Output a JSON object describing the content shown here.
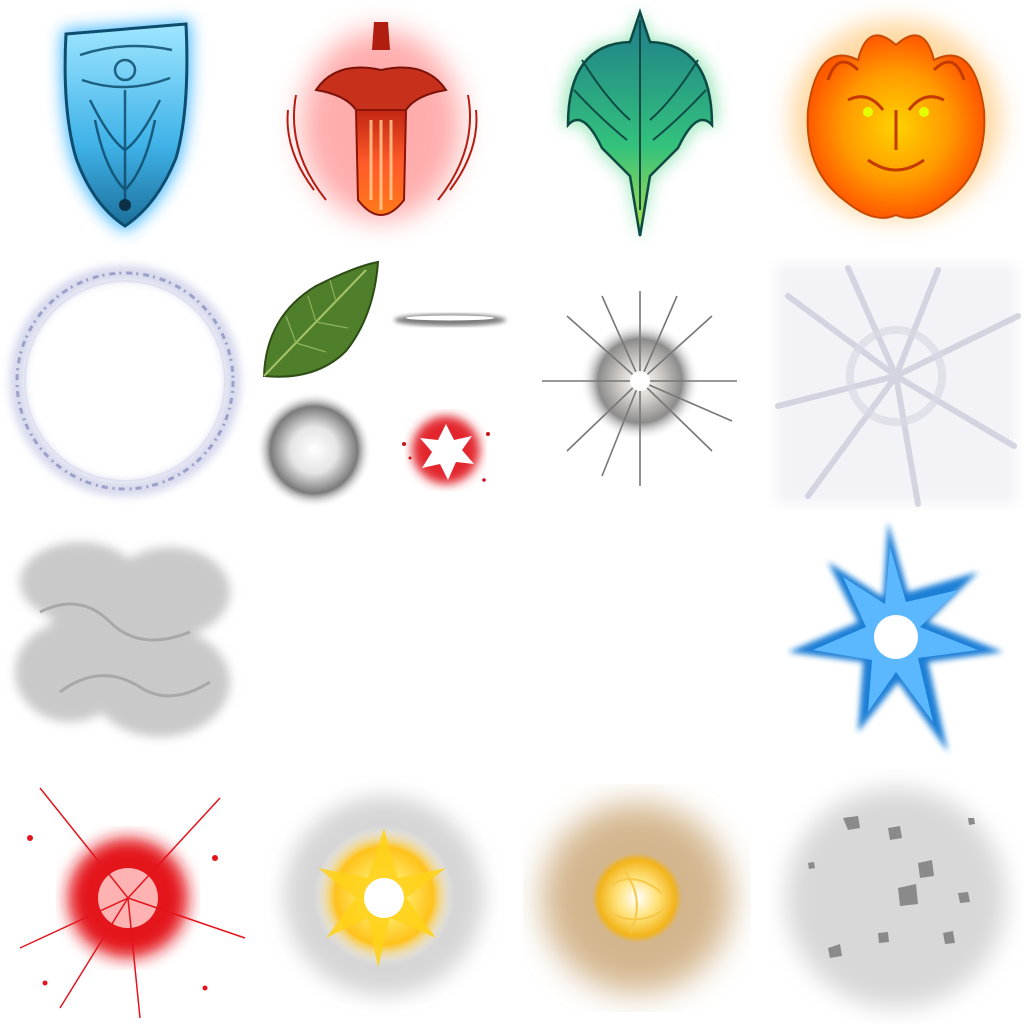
{
  "sprite_sheet": {
    "columns": 4,
    "rows": 4,
    "background": "#ffffff",
    "sprites": [
      {
        "name": "blue-shield-emblem",
        "color": "#27a8ff"
      },
      {
        "name": "red-sword-emblem",
        "color": "#e8321c"
      },
      {
        "name": "green-sword-wings-emblem",
        "color": "#2bb673"
      },
      {
        "name": "fire-demon-face-emblem",
        "color": "#ff9a00"
      },
      {
        "name": "rune-circle-ring",
        "color": "#9aa0c8"
      },
      {
        "name": "leaf-and-misc-fx",
        "colors": [
          "#4f7f2a",
          "#7a7a7a",
          "#e3262d"
        ]
      },
      {
        "name": "white-spark-burst",
        "color": "#8c8c8c"
      },
      {
        "name": "cracked-shatter-flash",
        "color": "#d9d9e4"
      },
      {
        "name": "gray-smoke-texture",
        "color": "#c9c9c9"
      },
      {
        "name": "empty-slot-1"
      },
      {
        "name": "empty-slot-2"
      },
      {
        "name": "blue-star-burst",
        "color": "#1d7fd6"
      },
      {
        "name": "red-splatter-explosion",
        "color": "#e4141c"
      },
      {
        "name": "yellow-star-flash",
        "color": "#ffc21a"
      },
      {
        "name": "gold-energy-ball",
        "color": "#f2b41a"
      },
      {
        "name": "gray-debris-cloud",
        "color": "#9a9a9a"
      }
    ]
  }
}
